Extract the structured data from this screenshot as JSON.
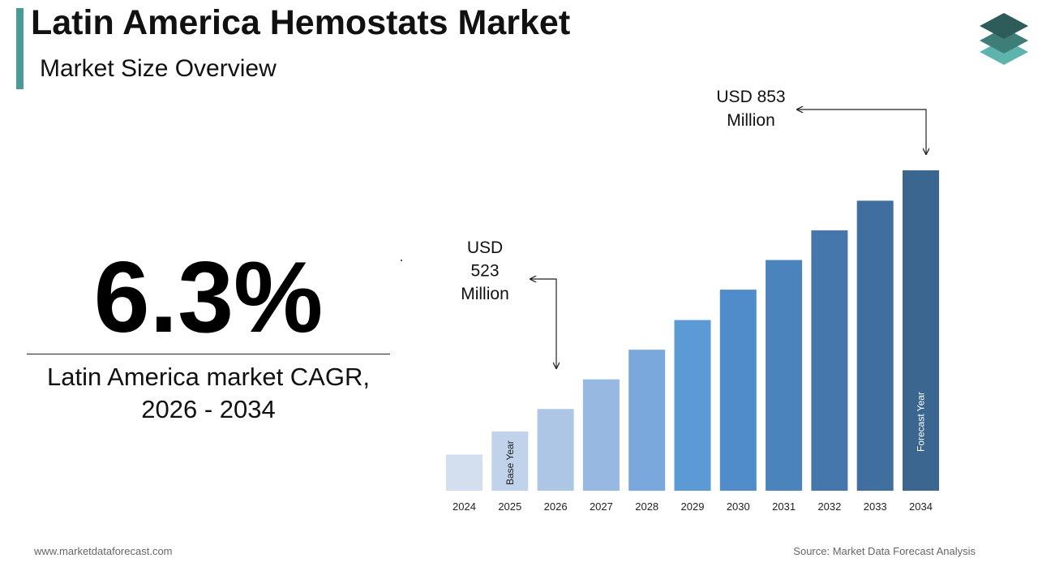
{
  "header": {
    "title": "Latin America Hemostats Market",
    "subtitle": "Market Size Overview"
  },
  "kpi": {
    "value": "6.3%",
    "label_line1": "Latin America market CAGR,",
    "label_line2": "2026 - 2034"
  },
  "footer": {
    "website": "www.marketdataforecast.com",
    "source": "Source: Market Data Forecast Analysis"
  },
  "colors": {
    "accent": "#4a9a96",
    "logo_top": "#2e5c59",
    "logo_mid": "#3f7d79",
    "logo_bottom": "#5fb3ad",
    "bar_colors": [
      "#d3deef",
      "#c1d3eb",
      "#adc6e6",
      "#97b8e0",
      "#7aa8dc",
      "#5b9ad4",
      "#4f8cc9",
      "#4b84bd",
      "#4577ad",
      "#3f6e9f",
      "#3a6690"
    ]
  },
  "chart_data": {
    "type": "bar",
    "categories": [
      "2024",
      "2025",
      "2026",
      "2027",
      "2028",
      "2029",
      "2030",
      "2031",
      "2032",
      "2033",
      "2034"
    ],
    "values": [
      460,
      492,
      523,
      564,
      605,
      646,
      688,
      729,
      770,
      811,
      853
    ],
    "unit": "USD Million",
    "ylim": [
      410,
      900
    ],
    "grid": false,
    "legend": "none",
    "bar_labels": {
      "1": "Base Year",
      "10": "Forecast Year"
    },
    "annotations": [
      {
        "category": "2026",
        "lines": [
          "USD",
          "523",
          "Million"
        ]
      },
      {
        "category": "2034",
        "lines": [
          "USD 853",
          "Million"
        ]
      }
    ]
  }
}
